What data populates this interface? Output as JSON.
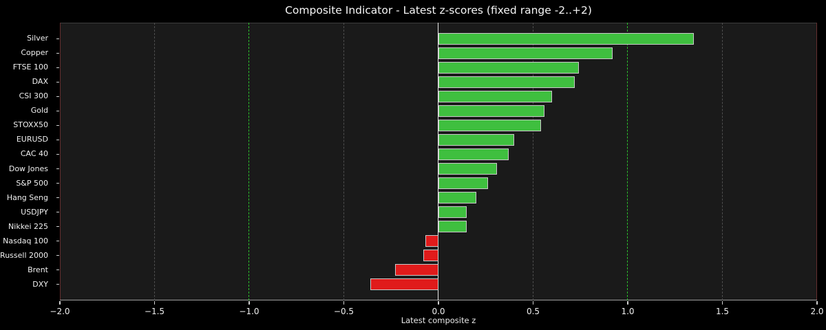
{
  "title": "Composite Indicator - Latest z-scores (fixed range -2..+2)",
  "chart_data": {
    "type": "bar",
    "orientation": "horizontal",
    "title": "Composite Indicator - Latest z-scores (fixed range -2..+2)",
    "xlabel": "Latest composite z",
    "ylabel": "",
    "xlim": [
      -2,
      2
    ],
    "grid": "vertical-dashed",
    "legend": "none",
    "categories": [
      "Silver",
      "Copper",
      "FTSE 100",
      "DAX",
      "CSI 300",
      "Gold",
      "STOXX50",
      "EURUSD",
      "CAC 40",
      "Dow Jones",
      "S&P 500",
      "Hang Seng",
      "USDJPY",
      "Nikkei 225",
      "Nasdaq 100",
      "Russell 2000",
      "Brent",
      "DXY"
    ],
    "values": [
      1.35,
      0.92,
      0.74,
      0.72,
      0.6,
      0.56,
      0.54,
      0.4,
      0.37,
      0.31,
      0.26,
      0.2,
      0.15,
      0.15,
      -0.07,
      -0.08,
      -0.23,
      -0.36
    ],
    "x_tick_values": [
      -2.0,
      -1.5,
      -1.0,
      -0.5,
      0.0,
      0.5,
      1.0,
      1.5,
      2.0
    ],
    "x_tick_labels": [
      "−2.0",
      "−1.5",
      "−1.0",
      "−0.5",
      "0.0",
      "0.5",
      "1.0",
      "1.5",
      "2.0"
    ],
    "minor_gridline_values": [
      -1.5,
      -0.5,
      0.5,
      1.5
    ],
    "threshold_line_values": [
      -1.0,
      1.0
    ],
    "zero_line_value": 0.0,
    "colors": {
      "figure_background": "#000000",
      "axes_background": "#1a1a1a",
      "positive_bar": "#3fbf3f",
      "negative_bar": "#e01b1b",
      "bar_border": "#c9c9c9",
      "minor_gridline": "#4e4e4e",
      "threshold_line": "#2cc22c",
      "zero_line": "#e8e8e8",
      "text": "#f0f0f0"
    }
  }
}
